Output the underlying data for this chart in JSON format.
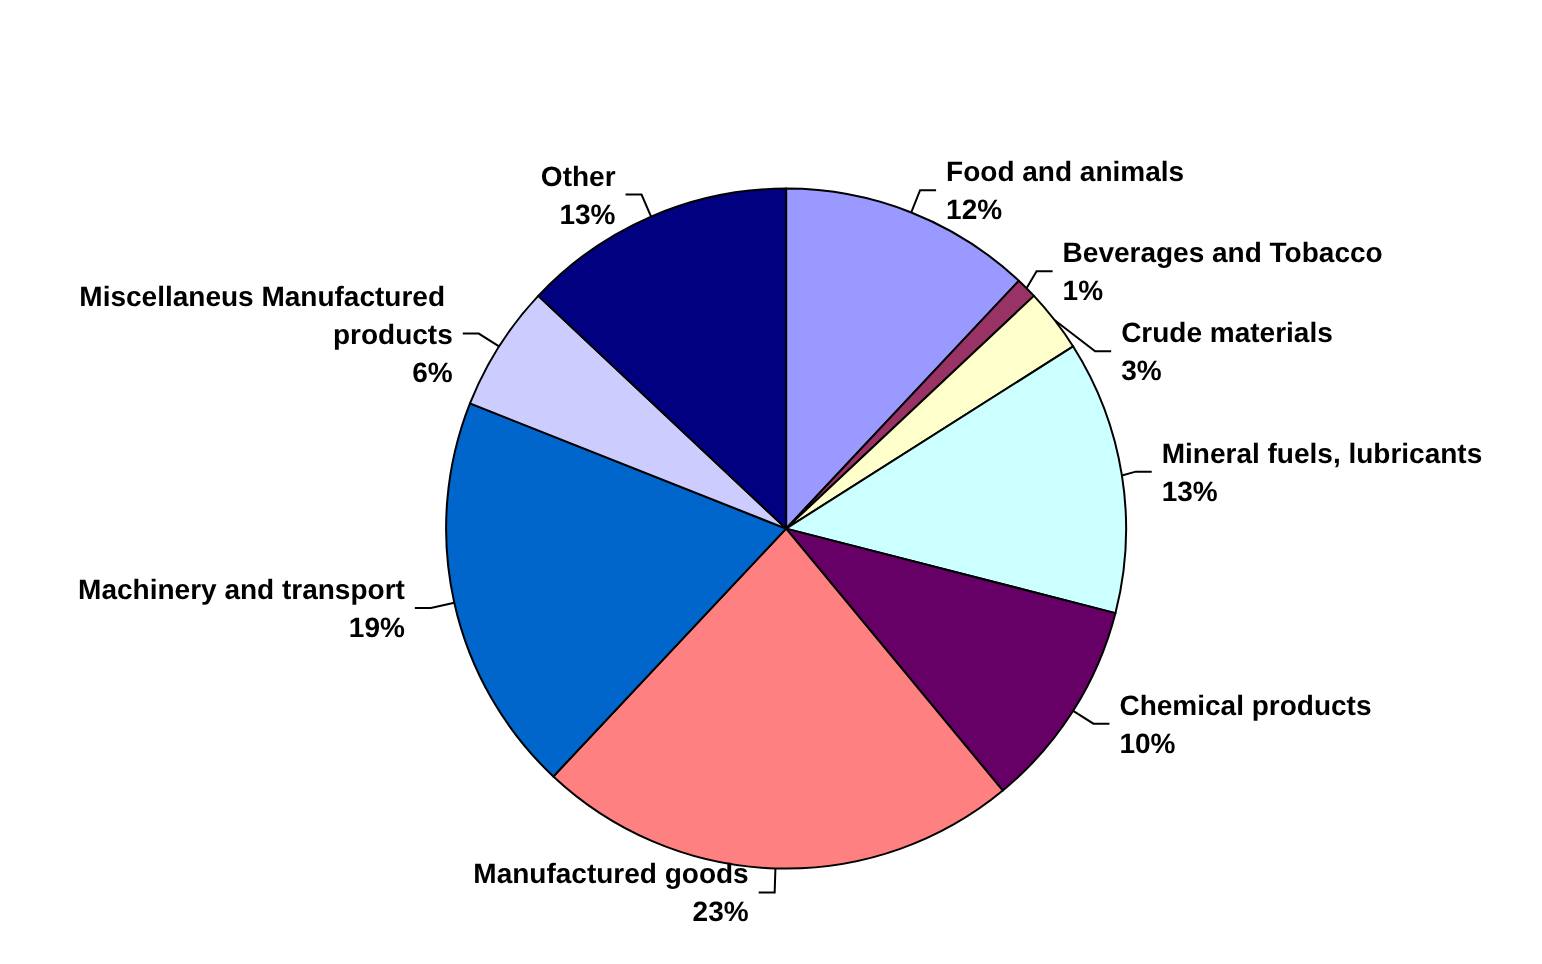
{
  "chart_data": {
    "type": "pie",
    "categories": [
      "Food and animals",
      "Beverages and Tobacco",
      "Crude materials",
      "Mineral fuels, lubricants",
      "Chemical products",
      "Manufactured goods",
      "Machinery and transport",
      "Miscellaneus Manufactured products",
      "Other"
    ],
    "values": [
      12,
      1,
      3,
      13,
      10,
      23,
      19,
      6,
      13
    ],
    "value_labels": [
      "12%",
      "1%",
      "3%",
      "13%",
      "10%",
      "23%",
      "19%",
      "6%",
      "13%"
    ],
    "colors": [
      "#9999ff",
      "#993366",
      "#ffffcc",
      "#ccffff",
      "#660066",
      "#ff8080",
      "#0066cc",
      "#ccccff",
      "#000080"
    ],
    "legend": false
  }
}
